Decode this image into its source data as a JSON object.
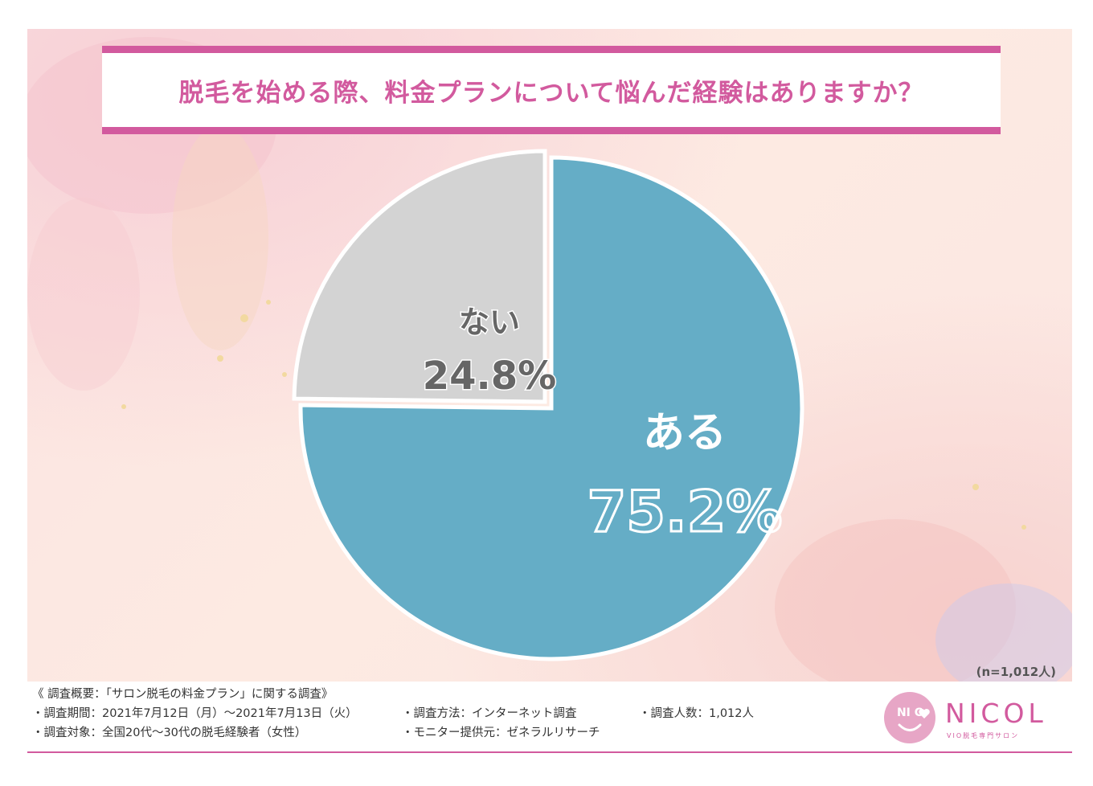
{
  "title": "脱毛を始める際、料金プランについて悩んだ経験はありますか？",
  "sample_size": "(n=1,012人)",
  "colors": {
    "accent": "#d25a9e",
    "slice_yes": "#65adc6",
    "slice_no": "#d3d3d3",
    "label_no": "#666666"
  },
  "chart_data": {
    "type": "pie",
    "categories": [
      "ある",
      "ない"
    ],
    "values": [
      75.2,
      24.8
    ],
    "value_labels": [
      "75.2%",
      "24.8%"
    ],
    "legend": "none"
  },
  "footer": {
    "summary": "《 調査概要：「サロン脱毛の料金プラン」に関する調査》",
    "period": "・調査期間：2021年7月12日（月）～2021年7月13日（火）",
    "method": "・調査方法：インターネット調査",
    "respondents": "・調査人数：1,012人",
    "target": "・調査対象：全国20代～30代の脱毛経験者（女性）",
    "provider": "・モニター提供元：ゼネラルリサーチ"
  },
  "logo": {
    "mark": "NI C",
    "name": "NICOL",
    "tagline": "VIO脱毛専門サロン",
    "mark_icon": "heart-icon"
  }
}
